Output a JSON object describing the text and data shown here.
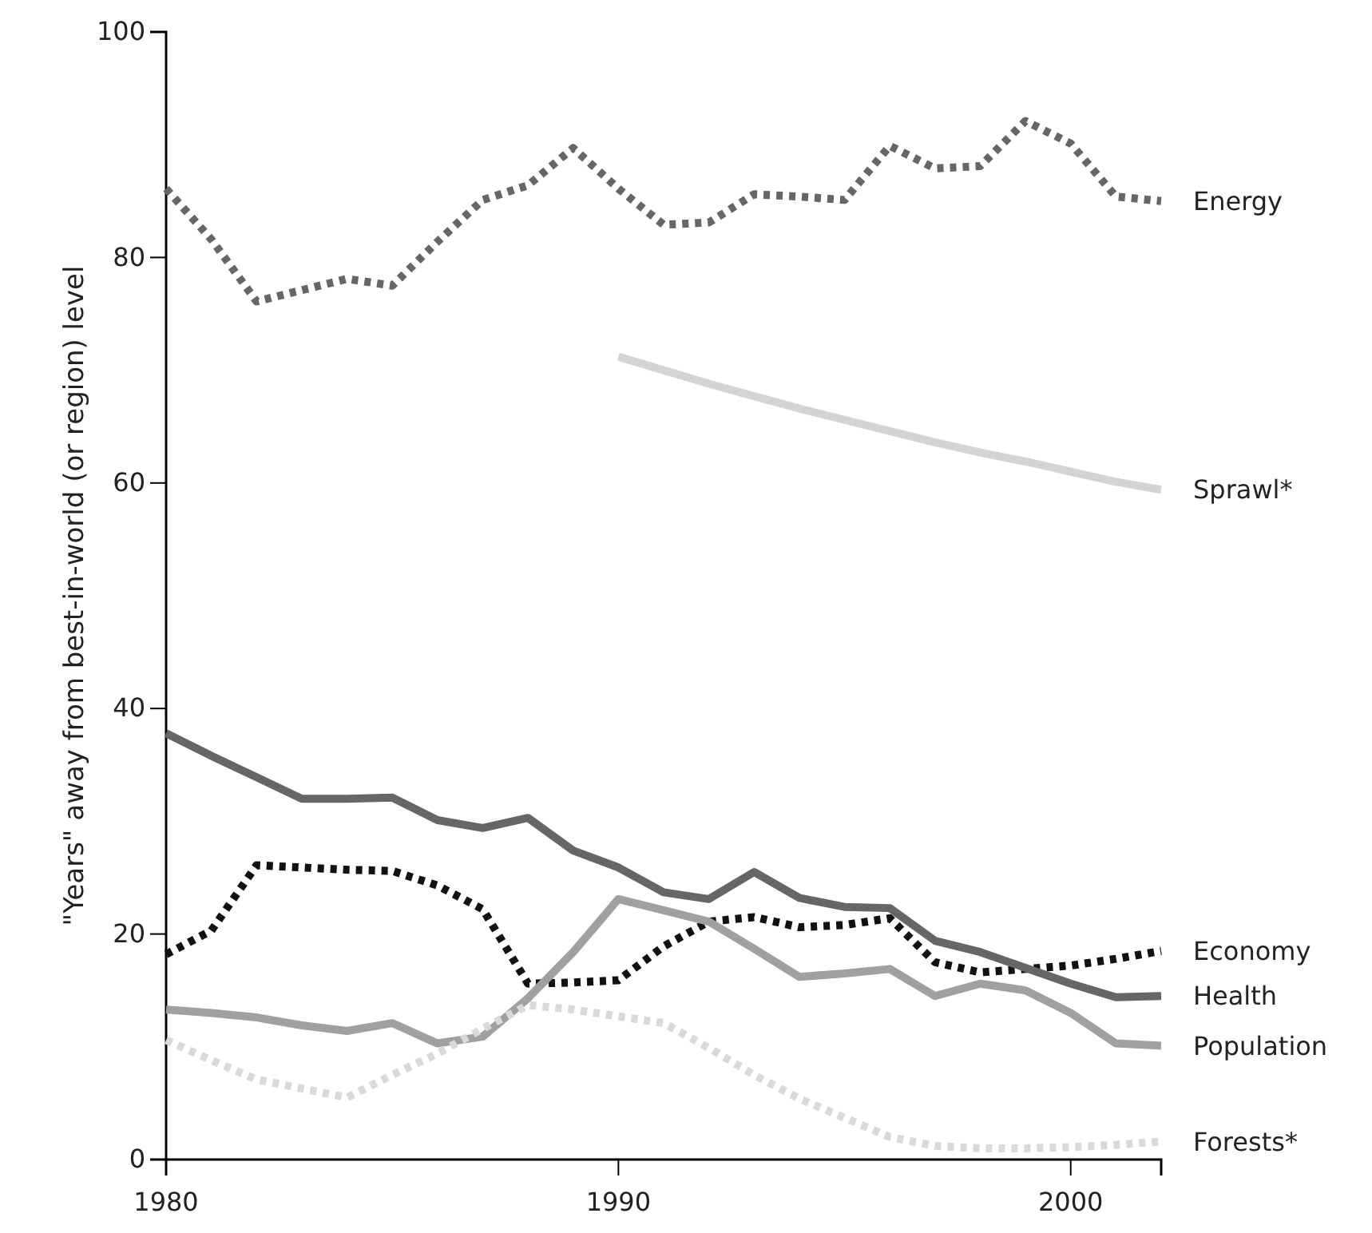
{
  "chart_data": {
    "type": "line",
    "ylabel": "\"Years\" away from best-in-world (or region) level",
    "x": [
      1980,
      1981,
      1982,
      1983,
      1984,
      1985,
      1986,
      1987,
      1988,
      1989,
      1990,
      1991,
      1992,
      1993,
      1994,
      1995,
      1996,
      1997,
      1998,
      1999,
      2000,
      2001,
      2002
    ],
    "xlim": [
      1980,
      2002
    ],
    "xticks": [
      1980,
      1990,
      2000
    ],
    "ylim": [
      0,
      100
    ],
    "yticks": [
      0,
      20,
      40,
      60,
      80,
      100
    ],
    "grid": false,
    "legend": false,
    "marker": "none",
    "series": [
      {
        "name": "Energy",
        "color": "#666666",
        "line_style": "dotted",
        "values": [
          86.1,
          81.6,
          76.1,
          77.1,
          78.1,
          77.5,
          81.4,
          85.1,
          86.4,
          89.7,
          86.1,
          82.9,
          83.1,
          85.6,
          85.4,
          85.1,
          89.9,
          87.9,
          88.1,
          92.1,
          90.1,
          85.4,
          85.0
        ]
      },
      {
        "name": "Sprawl*",
        "color": "#d4d4d4",
        "line_style": "solid",
        "values": [
          null,
          null,
          null,
          null,
          null,
          null,
          null,
          null,
          null,
          null,
          71.2,
          70.0,
          68.8,
          67.7,
          66.6,
          65.6,
          64.6,
          63.6,
          62.7,
          61.9,
          61.0,
          60.1,
          59.4
        ]
      },
      {
        "name": "Economy",
        "color": "#111111",
        "line_style": "dotted",
        "values": [
          18.2,
          20.3,
          26.1,
          25.9,
          25.7,
          25.6,
          24.3,
          22.2,
          15.6,
          15.7,
          15.9,
          18.9,
          21.1,
          21.5,
          20.6,
          20.8,
          21.4,
          17.5,
          16.6,
          16.9,
          17.2,
          17.8,
          18.5
        ]
      },
      {
        "name": "Health",
        "color": "#666666",
        "line_style": "solid",
        "values": [
          37.8,
          35.8,
          33.9,
          32.0,
          32.0,
          32.1,
          30.1,
          29.4,
          30.3,
          27.4,
          25.9,
          23.7,
          23.1,
          25.5,
          23.2,
          22.4,
          22.3,
          19.4,
          18.4,
          17.0,
          15.6,
          14.4,
          14.5
        ]
      },
      {
        "name": "Population",
        "color": "#a0a0a0",
        "line_style": "solid",
        "values": [
          13.3,
          13.0,
          12.6,
          11.9,
          11.4,
          12.1,
          10.3,
          10.9,
          14.3,
          18.4,
          23.1,
          22.1,
          21.1,
          18.7,
          16.2,
          16.5,
          16.9,
          14.5,
          15.6,
          15.0,
          13.0,
          10.3,
          10.1
        ]
      },
      {
        "name": "Forests*",
        "color": "#d9d9d9",
        "line_style": "dotted",
        "values": [
          10.6,
          8.8,
          7.1,
          6.3,
          5.5,
          7.5,
          9.4,
          11.6,
          13.7,
          13.3,
          12.7,
          12.1,
          9.9,
          7.5,
          5.4,
          3.7,
          2.0,
          1.2,
          1.0,
          1.0,
          1.1,
          1.3,
          1.6
        ]
      }
    ]
  }
}
